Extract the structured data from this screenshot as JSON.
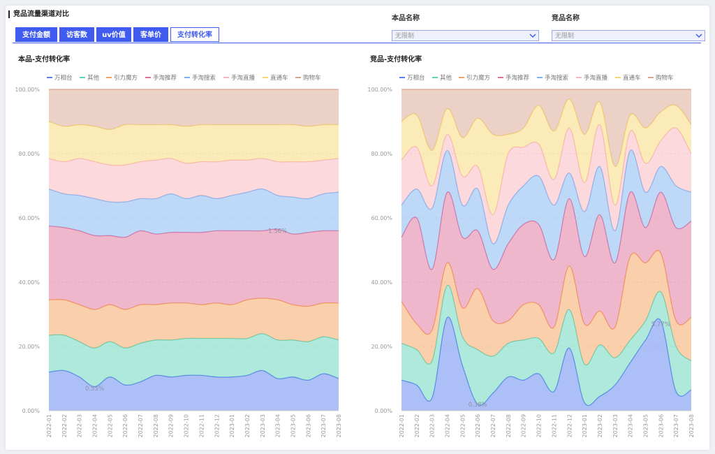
{
  "header": {
    "title": "竞品流量渠道对比"
  },
  "tabs": [
    {
      "label": "支付金额",
      "active": false
    },
    {
      "label": "访客数",
      "active": false
    },
    {
      "label": "uv价值",
      "active": false
    },
    {
      "label": "客单价",
      "active": false
    },
    {
      "label": "支付转化率",
      "active": true
    }
  ],
  "filters": [
    {
      "label": "本品名称",
      "value": "无限制"
    },
    {
      "label": "竞品名称",
      "value": "无限制"
    }
  ],
  "chart_data": [
    {
      "type": "stacked_area",
      "title": "本品-支付转化率",
      "categories": [
        "2022-01",
        "2022-02",
        "2022-03",
        "2022-04",
        "2022-05",
        "2022-06",
        "2022-07",
        "2022-08",
        "2022-09",
        "2022-10",
        "2022-11",
        "2022-12",
        "2023-01",
        "2023-02",
        "2023-03",
        "2023-04",
        "2023-05",
        "2023-06",
        "2023-07",
        "2023-08"
      ],
      "ylim": [
        0,
        100
      ],
      "yticks": [
        {
          "value": 0,
          "label": "0.00%"
        },
        {
          "value": 20,
          "label": "20.00%"
        },
        {
          "value": 40,
          "label": "40.00%"
        },
        {
          "value": 60,
          "label": "60.00%"
        },
        {
          "value": 80,
          "label": "80.00%"
        },
        {
          "value": 100,
          "label": "100.00%"
        }
      ],
      "grid": true,
      "legend": "top",
      "series": [
        {
          "name": "万相台",
          "color": "#5b7ff0",
          "values": [
            12,
            12.5,
            10.5,
            7.5,
            10.5,
            8,
            9,
            11,
            10.5,
            11,
            11,
            10.5,
            10.5,
            11,
            12.5,
            10,
            10.5,
            9.5,
            11.5,
            10
          ]
        },
        {
          "name": "其他",
          "color": "#5fd3b8",
          "values": [
            11.5,
            11,
            11,
            12,
            11,
            11.5,
            12,
            11,
            11.5,
            11.5,
            11.5,
            12,
            12,
            11.5,
            11.5,
            12,
            11.5,
            12,
            11.5,
            12
          ]
        },
        {
          "name": "引力魔方",
          "color": "#f5a25a",
          "values": [
            11,
            11,
            11.5,
            12,
            11.5,
            12,
            12,
            11,
            11.5,
            11,
            10.5,
            11,
            10.5,
            12,
            11,
            12.5,
            11,
            11,
            10.5,
            11.5
          ]
        },
        {
          "name": "手淘推荐",
          "color": "#e0709a",
          "values": [
            23,
            22.5,
            23,
            23,
            21.5,
            22.5,
            23,
            22,
            22,
            22,
            22.5,
            22.5,
            23,
            21.5,
            21,
            22,
            22,
            23,
            22.5,
            22.5
          ]
        },
        {
          "name": "手淘搜索",
          "color": "#7db2f2",
          "values": [
            11.5,
            10.5,
            11,
            11.5,
            10.5,
            11,
            10,
            11,
            12,
            10.5,
            11.5,
            10,
            11,
            12,
            13,
            10.5,
            11.5,
            10.5,
            11.5,
            12
          ]
        },
        {
          "name": "手淘直播",
          "color": "#f8b4bc",
          "values": [
            9.5,
            10,
            11.5,
            11.5,
            11.5,
            11.5,
            11.5,
            12,
            11,
            11,
            10.5,
            11.5,
            11,
            10,
            9.5,
            10.5,
            11,
            11.5,
            10.5,
            10.5
          ]
        },
        {
          "name": "直通车",
          "color": "#f7d774",
          "values": [
            11.5,
            11,
            10.5,
            11,
            11,
            12.5,
            11.5,
            11,
            10.5,
            11.5,
            11.5,
            11.5,
            11,
            11,
            10.5,
            11.5,
            11.5,
            11,
            11,
            10.5
          ]
        },
        {
          "name": "购物车",
          "color": "#d9a48e",
          "values": [
            10,
            11.5,
            11,
            11.5,
            12.5,
            11,
            11,
            11,
            11,
            11.5,
            11,
            11,
            11,
            11,
            11,
            11,
            11,
            11.5,
            11,
            11
          ]
        }
      ],
      "annotations": [
        {
          "text": "0.55%",
          "x": "2022-04",
          "y": 7
        },
        {
          "text": "1.56%",
          "x": "2023-04",
          "y": 56
        }
      ]
    },
    {
      "type": "stacked_area",
      "title": "竞品-支付转化率",
      "categories": [
        "2022-01",
        "2022-02",
        "2022-03",
        "2022-04",
        "2022-05",
        "2022-06",
        "2022-07",
        "2022-08",
        "2022-09",
        "2022-10",
        "2022-11",
        "2022-12",
        "2023-01",
        "2023-02",
        "2023-03",
        "2023-04",
        "2023-05",
        "2023-06",
        "2023-07",
        "2023-08"
      ],
      "ylim": [
        0,
        100
      ],
      "yticks": [
        {
          "value": 0,
          "label": "0.00%"
        },
        {
          "value": 20,
          "label": "20.00%"
        },
        {
          "value": 40,
          "label": "40.00%"
        },
        {
          "value": 60,
          "label": "60.00%"
        },
        {
          "value": 80,
          "label": "80.00%"
        },
        {
          "value": 100,
          "label": "100.00%"
        }
      ],
      "grid": true,
      "legend": "top",
      "series": [
        {
          "name": "万相台",
          "color": "#5b7ff0",
          "values": [
            9.5,
            8,
            4,
            29,
            14,
            2,
            5.5,
            10.5,
            9.5,
            11.5,
            6,
            19.5,
            2.5,
            4.5,
            8,
            15,
            22,
            28,
            6,
            6.5
          ]
        },
        {
          "name": "其他",
          "color": "#5fd3b8",
          "values": [
            11.5,
            11,
            11.5,
            10,
            9,
            17,
            11.5,
            10.5,
            12.5,
            11,
            12,
            12,
            12,
            16,
            8.5,
            7,
            6,
            9,
            14,
            9
          ]
        },
        {
          "name": "引力魔方",
          "color": "#f5a25a",
          "values": [
            13,
            8,
            9.5,
            7,
            9,
            19,
            11,
            7,
            11,
            10.5,
            8,
            13.5,
            12.5,
            10.5,
            9.5,
            26,
            18,
            12,
            8,
            13.5
          ]
        },
        {
          "name": "手淘推荐",
          "color": "#e0709a",
          "values": [
            20,
            33,
            19,
            22,
            22,
            18,
            16,
            24,
            25,
            25,
            21,
            21,
            21,
            30,
            20,
            20,
            11,
            19,
            29,
            30
          ]
        },
        {
          "name": "手淘搜索",
          "color": "#7db2f2",
          "values": [
            10,
            9,
            19,
            13,
            10,
            13,
            8,
            12,
            12,
            15,
            17,
            8,
            14,
            15,
            10,
            13,
            11,
            8,
            13,
            9
          ]
        },
        {
          "name": "手淘直播",
          "color": "#f8b4bc",
          "values": [
            14,
            13,
            7,
            5,
            9,
            7,
            9,
            16,
            12,
            10,
            8,
            14,
            9,
            13,
            8,
            6,
            9,
            8,
            18,
            12
          ]
        },
        {
          "name": "直通车",
          "color": "#f7d774",
          "values": [
            12,
            10,
            11,
            8,
            12,
            15,
            25,
            6,
            6,
            12,
            15,
            9,
            15,
            7,
            12,
            5,
            11,
            9,
            7,
            9
          ]
        },
        {
          "name": "购物车",
          "color": "#d9a48e",
          "values": [
            10,
            8,
            19,
            6,
            15,
            9,
            14,
            14,
            12,
            5,
            13,
            3,
            14,
            4,
            24,
            8,
            12,
            7,
            5,
            11
          ]
        }
      ],
      "annotations": [
        {
          "text": "0.38%",
          "x": "2022-06",
          "y": 2
        },
        {
          "text": "5.77%",
          "x": "2023-06",
          "y": 27
        }
      ]
    }
  ]
}
